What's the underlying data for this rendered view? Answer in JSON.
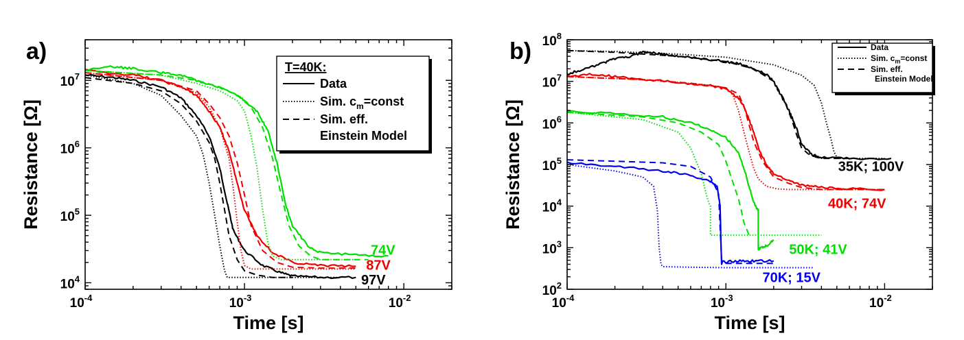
{
  "chart_data": [
    {
      "type": "line",
      "panel_label": "a)",
      "xlabel": "Time [s]",
      "ylabel": "Resistance [Ω]",
      "x_scale": "log",
      "y_scale": "log",
      "xlim": [
        0.0001,
        0.02
      ],
      "ylim": [
        8000,
        40000000
      ],
      "x_ticks": [
        {
          "value": 0.0001,
          "base": "10",
          "exp": "-4"
        },
        {
          "value": 0.001,
          "base": "10",
          "exp": "-3"
        },
        {
          "value": 0.01,
          "base": "10",
          "exp": "-2"
        }
      ],
      "y_ticks": [
        {
          "value": 10000,
          "base": "10",
          "exp": "4"
        },
        {
          "value": 100000,
          "base": "10",
          "exp": "5"
        },
        {
          "value": 1000000,
          "base": "10",
          "exp": "6"
        },
        {
          "value": 10000000,
          "base": "10",
          "exp": "7"
        }
      ],
      "grid": false,
      "legend": {
        "position": "top-right",
        "title": "T=40K:",
        "entries": [
          {
            "label": "Data",
            "style": "solid"
          },
          {
            "label": "Sim. c_m=const",
            "display": [
              "Sim. c",
              "m",
              "=const"
            ],
            "style": "dotted"
          },
          {
            "label": "Sim. eff. Einstein Model",
            "display_lines": [
              "Sim. eff.",
              "Einstein Model"
            ],
            "style": "dashed"
          }
        ]
      },
      "annotations": [
        {
          "text": "74V",
          "color": "#00dd00",
          "x": 0.0062,
          "y": 26000
        },
        {
          "text": "87V",
          "color": "#ee0000",
          "x": 0.0058,
          "y": 15500
        },
        {
          "text": "97V",
          "color": "#000000",
          "x": 0.0054,
          "y": 9400
        }
      ],
      "series": [
        {
          "color": "#000000",
          "style": "solid",
          "noisy": true,
          "x": [
            0.0001,
            0.00015,
            0.0002,
            0.0003,
            0.0004,
            0.0005,
            0.0006,
            0.0007,
            0.00078,
            0.00085,
            0.001,
            0.0013,
            0.0017,
            0.002,
            0.003,
            0.005
          ],
          "y": [
            12000000,
            11000000,
            10000000,
            8000000,
            5500000,
            3000000,
            1500000,
            500000,
            150000,
            60000,
            30000,
            18000,
            14000,
            12500,
            12000,
            12000
          ]
        },
        {
          "color": "#000000",
          "style": "dotted",
          "x": [
            0.0001,
            0.0002,
            0.0003,
            0.0004,
            0.0005,
            0.00055,
            0.0006,
            0.00065,
            0.0007,
            0.00075,
            0.00078,
            0.001,
            0.002,
            0.004
          ],
          "y": [
            12000000,
            9000000,
            6000000,
            3000000,
            1500000,
            800000,
            300000,
            100000,
            35000,
            15000,
            12000,
            12000,
            12000,
            12000
          ]
        },
        {
          "color": "#000000",
          "style": "dashed",
          "x": [
            0.0001,
            0.0002,
            0.0003,
            0.0004,
            0.0005,
            0.0006,
            0.00065,
            0.0007,
            0.00075,
            0.0008,
            0.0009,
            0.001,
            0.0012,
            0.0015,
            0.002
          ],
          "y": [
            11000000,
            9000000,
            7000000,
            4500000,
            2500000,
            1200000,
            700000,
            300000,
            120000,
            50000,
            22000,
            15000,
            13000,
            12000,
            12000
          ]
        },
        {
          "color": "#ee0000",
          "style": "solid",
          "noisy": true,
          "x": [
            0.0001,
            0.0002,
            0.0003,
            0.0004,
            0.0005,
            0.0006,
            0.0007,
            0.0008,
            0.0009,
            0.001,
            0.0012,
            0.0015,
            0.002,
            0.003,
            0.005
          ],
          "y": [
            14000000,
            12000000,
            10000000,
            8000000,
            6000000,
            3500000,
            2000000,
            900000,
            300000,
            120000,
            50000,
            28000,
            20000,
            18000,
            17500
          ]
        },
        {
          "color": "#ee0000",
          "style": "dotted",
          "x": [
            0.0001,
            0.0003,
            0.0005,
            0.0006,
            0.0007,
            0.0008,
            0.00085,
            0.0009,
            0.00095,
            0.001,
            0.0011,
            0.002,
            0.005
          ],
          "y": [
            13000000,
            10000000,
            6500000,
            4000000,
            2000000,
            700000,
            250000,
            80000,
            30000,
            18000,
            16000,
            16000,
            16000
          ]
        },
        {
          "color": "#ee0000",
          "style": "dashed",
          "x": [
            0.0001,
            0.0003,
            0.0005,
            0.0006,
            0.0007,
            0.0008,
            0.0009,
            0.001,
            0.0011,
            0.0013,
            0.0016,
            0.002,
            0.003,
            0.005
          ],
          "y": [
            13000000,
            10000000,
            7000000,
            4500000,
            2800000,
            1500000,
            600000,
            200000,
            70000,
            30000,
            20000,
            17000,
            16500,
            16500
          ]
        },
        {
          "color": "#00dd00",
          "style": "solid",
          "noisy": true,
          "x": [
            0.0001,
            0.00015,
            0.0002,
            0.0003,
            0.0004,
            0.0005,
            0.0007,
            0.0009,
            0.001,
            0.0012,
            0.0014,
            0.0016,
            0.0018,
            0.002,
            0.0025,
            0.003,
            0.005,
            0.008
          ],
          "y": [
            14000000,
            16000000,
            15000000,
            13000000,
            12000000,
            10000000,
            8000000,
            6000000,
            5000000,
            3500000,
            1800000,
            600000,
            150000,
            70000,
            35000,
            28000,
            26000,
            25000
          ]
        },
        {
          "color": "#00dd00",
          "style": "dotted",
          "x": [
            0.0001,
            0.0003,
            0.0005,
            0.0007,
            0.0009,
            0.001,
            0.0011,
            0.0012,
            0.0013,
            0.0014,
            0.0015,
            0.0017,
            0.002,
            0.003,
            0.005
          ],
          "y": [
            14000000,
            12000000,
            9000000,
            7000000,
            5000000,
            3500000,
            1500000,
            500000,
            120000,
            40000,
            25000,
            22000,
            22000,
            22000,
            22000
          ]
        },
        {
          "color": "#00dd00",
          "style": "dashed",
          "x": [
            0.0001,
            0.0003,
            0.0005,
            0.0007,
            0.0009,
            0.0011,
            0.0013,
            0.0015,
            0.0017,
            0.0019,
            0.0022,
            0.0026,
            0.003,
            0.004,
            0.006
          ],
          "y": [
            14000000,
            12000000,
            10000000,
            8000000,
            6000000,
            4000000,
            2000000,
            700000,
            200000,
            70000,
            35000,
            25000,
            22000,
            22000,
            22000
          ]
        }
      ]
    },
    {
      "type": "line",
      "panel_label": "b)",
      "xlabel": "Time [s]",
      "ylabel": "Resistance [Ω]",
      "x_scale": "log",
      "y_scale": "log",
      "xlim": [
        0.0001,
        0.02
      ],
      "ylim": [
        100,
        100000000
      ],
      "x_ticks": [
        {
          "value": 0.0001,
          "base": "10",
          "exp": "-4"
        },
        {
          "value": 0.001,
          "base": "10",
          "exp": "-3"
        },
        {
          "value": 0.01,
          "base": "10",
          "exp": "-2"
        }
      ],
      "y_ticks": [
        {
          "value": 100,
          "base": "10",
          "exp": "2"
        },
        {
          "value": 1000,
          "base": "10",
          "exp": "3"
        },
        {
          "value": 10000,
          "base": "10",
          "exp": "4"
        },
        {
          "value": 100000,
          "base": "10",
          "exp": "5"
        },
        {
          "value": 1000000,
          "base": "10",
          "exp": "6"
        },
        {
          "value": 10000000,
          "base": "10",
          "exp": "7"
        },
        {
          "value": 100000000,
          "base": "10",
          "exp": "8"
        }
      ],
      "grid": false,
      "legend": {
        "position": "top-right",
        "entries": [
          {
            "label": "Data",
            "style": "solid"
          },
          {
            "label": "Sim. c_m=const",
            "display": [
              "Sim. c",
              "m",
              "=const"
            ],
            "style": "dotted"
          },
          {
            "label": "Sim. eff. Einstein Model",
            "display_lines": [
              "Sim. eff.",
              "Einstein Model"
            ],
            "style": "dashed"
          }
        ]
      },
      "annotations": [
        {
          "text": "35K; 100V",
          "color": "#000000",
          "x": 0.0051,
          "y": 70000
        },
        {
          "text": "40K; 74V",
          "color": "#ee0000",
          "x": 0.0044,
          "y": 9000
        },
        {
          "text": "50K; 41V",
          "color": "#00dd00",
          "x": 0.0025,
          "y": 700
        },
        {
          "text": "70K; 15V",
          "color": "#0000ee",
          "x": 0.0017,
          "y": 150
        }
      ],
      "series": [
        {
          "color": "#000000",
          "style": "solid",
          "noisy": true,
          "x": [
            0.0001,
            0.00013,
            0.00017,
            0.0002,
            0.00025,
            0.0003,
            0.00035,
            0.0004,
            0.0005,
            0.0007,
            0.001,
            0.0013,
            0.0015,
            0.0018,
            0.002,
            0.0022,
            0.0025,
            0.0028,
            0.003,
            0.0035,
            0.004,
            0.006,
            0.011
          ],
          "y": [
            15000000,
            20000000,
            28000000,
            35000000,
            40000000,
            50000000,
            48000000,
            45000000,
            40000000,
            35000000,
            30000000,
            25000000,
            20000000,
            15000000,
            10000000,
            5000000,
            2000000,
            700000,
            300000,
            170000,
            150000,
            140000,
            140000
          ]
        },
        {
          "color": "#000000",
          "style": "dotted",
          "x": [
            0.0001,
            0.0002,
            0.0005,
            0.001,
            0.002,
            0.003,
            0.0036,
            0.004,
            0.0043,
            0.0046,
            0.0048,
            0.005,
            0.0053,
            0.006,
            0.01
          ],
          "y": [
            55000000,
            52000000,
            45000000,
            38000000,
            25000000,
            14000000,
            8000000,
            3000000,
            1000000,
            400000,
            200000,
            150000,
            140000,
            140000,
            140000
          ]
        },
        {
          "color": "#000000",
          "style": "dashed",
          "x": [
            0.0001,
            0.0002,
            0.0005,
            0.001,
            0.0015,
            0.002,
            0.0023,
            0.0026,
            0.0028,
            0.003,
            0.0033,
            0.0037,
            0.004,
            0.0045,
            0.006
          ],
          "y": [
            55000000,
            50000000,
            40000000,
            30000000,
            20000000,
            10000000,
            4000000,
            1200000,
            500000,
            250000,
            180000,
            150000,
            140000,
            140000,
            140000
          ]
        },
        {
          "color": "#ee0000",
          "style": "solid",
          "noisy": true,
          "x": [
            0.0001,
            0.00015,
            0.0002,
            0.0003,
            0.0005,
            0.0008,
            0.001,
            0.0012,
            0.0013,
            0.0014,
            0.0015,
            0.0016,
            0.0018,
            0.002,
            0.0025,
            0.003,
            0.004,
            0.006,
            0.01
          ],
          "y": [
            13000000,
            15000000,
            13000000,
            11000000,
            9500000,
            8000000,
            6500000,
            4000000,
            2500000,
            1200000,
            600000,
            250000,
            100000,
            60000,
            40000,
            32000,
            28000,
            26000,
            25000
          ]
        },
        {
          "color": "#ee0000",
          "style": "dotted",
          "x": [
            0.0001,
            0.0003,
            0.0005,
            0.0008,
            0.001,
            0.0011,
            0.0012,
            0.0013,
            0.0014,
            0.0015,
            0.0016,
            0.0018,
            0.0021,
            0.0025,
            0.004,
            0.01
          ],
          "y": [
            13000000,
            11000000,
            9500000,
            8000000,
            7000000,
            5000000,
            2000000,
            600000,
            200000,
            80000,
            45000,
            30000,
            26000,
            25000,
            25000,
            25000
          ]
        },
        {
          "color": "#ee0000",
          "style": "dashed",
          "x": [
            0.0001,
            0.0003,
            0.0006,
            0.001,
            0.0012,
            0.0013,
            0.0014,
            0.0015,
            0.0017,
            0.002,
            0.0025,
            0.003,
            0.004,
            0.006,
            0.01
          ],
          "y": [
            13000000,
            11000000,
            9000000,
            7000000,
            5000000,
            2500000,
            900000,
            350000,
            120000,
            50000,
            35000,
            28000,
            25000,
            25000,
            25000
          ]
        },
        {
          "color": "#00dd00",
          "style": "solid",
          "noisy": true,
          "x": [
            0.0001,
            0.0002,
            0.0004,
            0.0006,
            0.0008,
            0.001,
            0.0012,
            0.0013,
            0.0014,
            0.0015,
            0.0016,
            0.0016,
            0.00165,
            0.0018,
            0.002
          ],
          "y": [
            1900000,
            1700000,
            1400000,
            1000000,
            700000,
            450000,
            200000,
            80000,
            30000,
            12000,
            8000,
            900,
            1000,
            1100,
            1500
          ]
        },
        {
          "color": "#00dd00",
          "style": "dotted",
          "x": [
            0.0001,
            0.0003,
            0.0005,
            0.0006,
            0.0007,
            0.00075,
            0.00078,
            0.0008,
            0.0008,
            0.002,
            0.004
          ],
          "y": [
            1800000,
            1200000,
            600000,
            250000,
            60000,
            20000,
            12000,
            10000,
            2000,
            2000,
            2000
          ]
        },
        {
          "color": "#00dd00",
          "style": "dashed",
          "x": [
            0.0001,
            0.0003,
            0.0005,
            0.0007,
            0.0009,
            0.001,
            0.0011,
            0.0012,
            0.00125,
            0.0013,
            0.0014
          ],
          "y": [
            1800000,
            1400000,
            1000000,
            600000,
            300000,
            120000,
            40000,
            15000,
            8000,
            4000,
            2000
          ]
        },
        {
          "color": "#0000ee",
          "style": "solid",
          "noisy": true,
          "x": [
            0.0001,
            0.0002,
            0.0004,
            0.0006,
            0.0008,
            0.00088,
            0.00092,
            0.00093,
            0.00094,
            0.00095,
            0.0012,
            0.0015,
            0.002
          ],
          "y": [
            110000,
            90000,
            70000,
            55000,
            40000,
            30000,
            10000,
            1500,
            400,
            450,
            480,
            480,
            480
          ]
        },
        {
          "color": "#0000ee",
          "style": "dotted",
          "x": [
            0.0001,
            0.0002,
            0.0003,
            0.00035,
            0.00037,
            0.00038,
            0.00039,
            0.0004,
            0.0006,
            0.001,
            0.002,
            0.0036
          ],
          "y": [
            100000,
            70000,
            50000,
            30000,
            8000,
            1000,
            400,
            350,
            340,
            330,
            330,
            330
          ]
        },
        {
          "color": "#0000ee",
          "style": "dashed",
          "x": [
            0.0001,
            0.0002,
            0.0004,
            0.0006,
            0.0008,
            0.0009,
            0.00092,
            0.00094,
            0.00098,
            0.0012,
            0.002
          ],
          "y": [
            130000,
            120000,
            110000,
            90000,
            50000,
            20000,
            3000,
            500,
            420,
            420,
            420
          ]
        }
      ]
    }
  ]
}
